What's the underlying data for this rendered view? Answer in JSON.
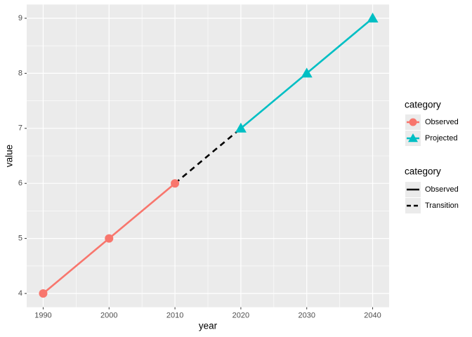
{
  "chart_data": {
    "type": "line",
    "x_label": "year",
    "y_label": "value",
    "xlim": [
      1987.5,
      2042.5
    ],
    "xticks": [
      1990,
      2000,
      2010,
      2020,
      2030,
      2040
    ],
    "ylim": [
      3.75,
      9.25
    ],
    "yticks": [
      4,
      5,
      6,
      7,
      8,
      9
    ],
    "grid": true,
    "legend_title": "category",
    "series": [
      {
        "name": "Observed",
        "color": "#F8766D",
        "marker": "circle",
        "linetype": "solid",
        "x": [
          1990,
          2000,
          2010
        ],
        "values": [
          4,
          5,
          6
        ]
      },
      {
        "name": "Transition",
        "color": "#000000",
        "linetype": "dashed",
        "x": [
          2010,
          2020
        ],
        "values": [
          6,
          7
        ]
      },
      {
        "name": "Projected",
        "color": "#00BFC4",
        "marker": "triangle",
        "linetype": "solid",
        "x": [
          2020,
          2030,
          2040
        ],
        "values": [
          7,
          8,
          9
        ]
      }
    ]
  }
}
